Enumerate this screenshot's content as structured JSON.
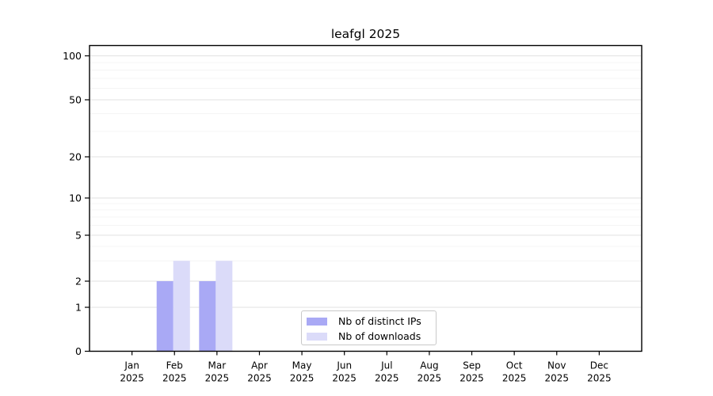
{
  "chart_data": {
    "type": "bar",
    "title": "leafgl 2025",
    "x_axis": {
      "categories": [
        "Jan",
        "Feb",
        "Mar",
        "Apr",
        "May",
        "Jun",
        "Jul",
        "Aug",
        "Sep",
        "Oct",
        "Nov",
        "Dec"
      ],
      "year_label": "2025"
    },
    "y_axis": {
      "tick_labels": [
        0,
        1,
        2,
        5,
        10,
        20,
        50,
        100
      ],
      "minor_gridlines": [
        3,
        4,
        6,
        7,
        8,
        9,
        30,
        40,
        60,
        70,
        80,
        90
      ],
      "scale": "log-like (0,1,2,5,10,20,50,100)",
      "ylim": [
        0,
        117
      ]
    },
    "series": [
      {
        "name": "Nb of distinct IPs",
        "color": "#a9a9f5",
        "values": [
          0,
          2,
          2,
          0,
          0,
          0,
          0,
          0,
          0,
          0,
          0,
          0
        ]
      },
      {
        "name": "Nb of downloads",
        "color": "#dbdbf9",
        "values": [
          0,
          3,
          3,
          0,
          0,
          0,
          0,
          0,
          0,
          0,
          0,
          0
        ]
      }
    ],
    "legend": {
      "position": "lower-center"
    },
    "colors": {
      "major_gridline": "#e2e2e2",
      "minor_gridline": "#f4f4f4",
      "axis": "#000000",
      "background": "#ffffff"
    },
    "grid": "horizontal"
  }
}
